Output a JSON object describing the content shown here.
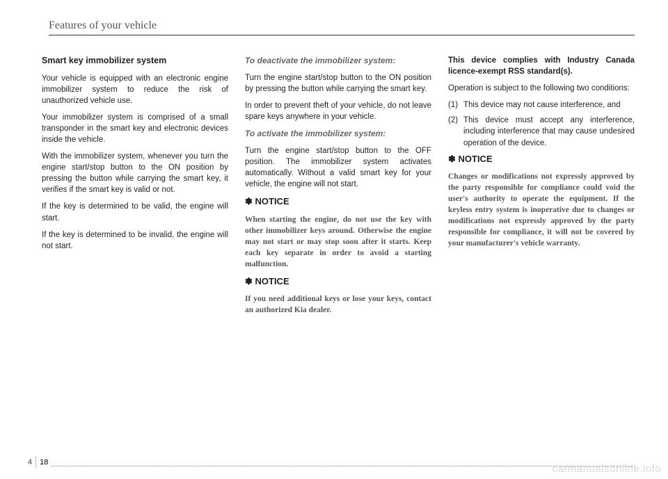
{
  "header": "Features of your vehicle",
  "col1": {
    "title": "Smart key immobilizer system",
    "p1": "Your vehicle is equipped with an electronic engine immobilizer system to reduce the risk of unauthorized vehicle use.",
    "p2": "Your immobilizer system is comprised of a small transponder in the smart key and electronic devices inside the vehicle.",
    "p3": "With the immobilizer system, whenever you turn the engine start/stop button to the ON position by pressing the button while carrying the smart key, it verifies if the smart key is valid or not.",
    "p4": "If the key is determined to be valid, the engine will start.",
    "p5": "If the key is determined to be invalid, the engine will not start."
  },
  "col2": {
    "h1": "To deactivate the immobilizer system:",
    "p1": "Turn the engine start/stop button to the ON position by pressing the button while carrying the smart key.",
    "p2": "In order to prevent theft of your vehicle, do not leave spare keys anywhere in your vehicle.",
    "h2": "To activate the immobilizer system:",
    "p3": "Turn the engine start/stop button to the OFF position. The immobilizer system activates automatically. Without a valid smart key for your vehicle, the engine will not start.",
    "notice1_head": "✽ NOTICE",
    "notice1_body": "When starting the engine, do not use the key with other immobilizer keys around. Otherwise the engine may not start or may stop soon after it starts. Keep each key separate in order to avoid a starting malfunction.",
    "notice2_head": "✽ NOTICE",
    "notice2_body": "If you need additional keys or lose your keys, contact an authorized Kia dealer."
  },
  "col3": {
    "bold": "This device complies with Industry Canada licence-exempt RSS standard(s).",
    "p1": "Operation is subject to the following two conditions:",
    "li1_num": "(1)",
    "li1_txt": "This device may not cause interference, and",
    "li2_num": "(2)",
    "li2_txt": "This device must accept any interference, including interference that may cause undesired operation of the device.",
    "notice_head": "✽ NOTICE",
    "notice_body": "Changes or modifications not expressly approved by the party responsible for compliance could void the user's authority to operate the equipment. If the keyless entry system is inoperative due to changes or modifications not expressly approved by the party responsible for compliance, it will not be covered by your manufacturer's vehicle warranty."
  },
  "page": {
    "chapter": "4",
    "num": "18"
  },
  "watermark": "carmanualsonline.info"
}
